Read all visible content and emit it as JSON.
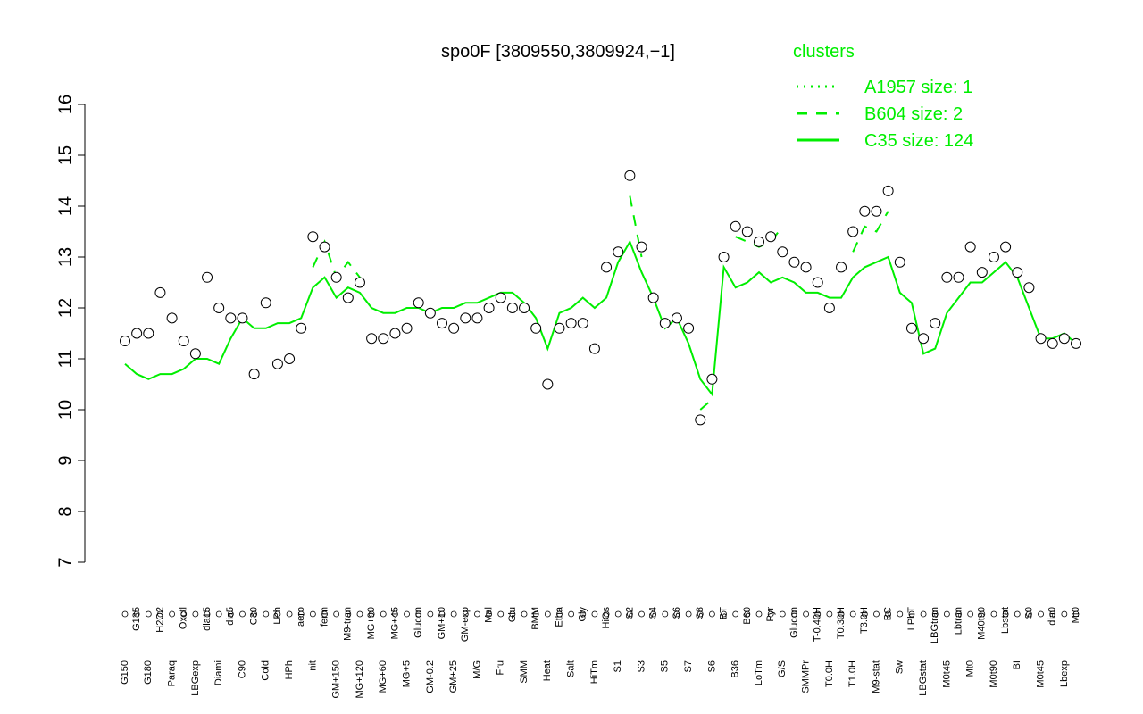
{
  "chart_data": {
    "type": "line",
    "title": "spo0F [3809550,3809924,−1]",
    "legend_title": "clusters",
    "legend_position": "top-right",
    "ylim": [
      7,
      16
    ],
    "yticks": [
      7,
      8,
      9,
      10,
      11,
      12,
      13,
      14,
      15,
      16
    ],
    "point_color": "#ffffff",
    "categories": [
      "G150",
      "G135",
      "G180",
      "H2O2",
      "Paraq",
      "Oxctl",
      "LBGexp",
      "dia15",
      "Diami",
      "dia5",
      "C90",
      "C30",
      "Cold",
      "LPh",
      "HPh",
      "aero",
      "nit",
      "ferm",
      "GM+150",
      "M9-tran",
      "MG+120",
      "MG+90",
      "MG+60",
      "MG+45",
      "MG+5",
      "Glucon",
      "GM-0.2",
      "GM+10",
      "GM+25",
      "GM-exp",
      "M/G",
      "Mal",
      "Fru",
      "Glu",
      "SMM",
      "BMM",
      "Heat",
      "Etha",
      "Salt",
      "Gly",
      "HiTm",
      "HiOs",
      "S1",
      "S2",
      "S3",
      "S4",
      "S5",
      "S6",
      "S7",
      "S8",
      "S6",
      "BT",
      "B36",
      "B60",
      "LoTm",
      "Pyr",
      "G/S",
      "Glucon",
      "SMMPr",
      "T-0.40H",
      "T0.0H",
      "T0.30H",
      "T1.0H",
      "T3.0H",
      "M9-stat",
      "BC",
      "Sw",
      "LPhT",
      "LBGstat",
      "LBGtran",
      "M0t45",
      "Lbtran",
      "Mt0",
      "M40t90",
      "M0t90",
      "Lbstat",
      "BI",
      "S0",
      "M0t45",
      "dia0",
      "Lbexp",
      "Mt0"
    ],
    "values": [
      11.35,
      11.5,
      11.5,
      12.3,
      11.8,
      11.35,
      11.1,
      12.6,
      12.0,
      11.8,
      11.8,
      10.7,
      12.1,
      10.9,
      11.0,
      11.6,
      13.4,
      13.2,
      12.6,
      12.2,
      12.5,
      11.4,
      11.4,
      11.5,
      11.6,
      12.1,
      11.9,
      11.7,
      11.6,
      11.8,
      11.8,
      12.0,
      12.2,
      12.0,
      12.0,
      11.6,
      10.5,
      11.6,
      11.7,
      11.7,
      11.2,
      12.8,
      13.1,
      14.6,
      13.2,
      12.2,
      11.7,
      11.8,
      11.6,
      9.8,
      10.6,
      13.0,
      13.6,
      13.5,
      13.3,
      13.4,
      13.1,
      12.9,
      12.8,
      12.5,
      12.0,
      12.8,
      13.5,
      13.9,
      13.9,
      14.3,
      12.9,
      11.6,
      11.4,
      11.7,
      12.6,
      12.6,
      13.2,
      12.7,
      13.0,
      13.2,
      12.7,
      12.4,
      11.4,
      11.3,
      11.4,
      11.3
    ],
    "series": [
      {
        "name": "A1957 size: 1",
        "color": "#00ee00",
        "dash": "dotted",
        "values": [
          null,
          null,
          null,
          null,
          null,
          null,
          null,
          null,
          null,
          null,
          null,
          null,
          null,
          null,
          null,
          null,
          null,
          null,
          null,
          null,
          null,
          null,
          null,
          null,
          null,
          null,
          null,
          null,
          null,
          null,
          null,
          null,
          null,
          null,
          null,
          null,
          null,
          null,
          null,
          null,
          null,
          null,
          null,
          null,
          null,
          null,
          null,
          null,
          null,
          null,
          null,
          null,
          null,
          null,
          null,
          null,
          null,
          null,
          null,
          null,
          null,
          null,
          null,
          null,
          null,
          null,
          null,
          null,
          null,
          null,
          null,
          null,
          null,
          null,
          null,
          null,
          null,
          null,
          null,
          null,
          null,
          null
        ]
      },
      {
        "name": "B604 size: 2",
        "color": "#00ee00",
        "dash": "dashed",
        "values": [
          null,
          null,
          null,
          null,
          null,
          null,
          null,
          null,
          null,
          null,
          null,
          null,
          null,
          null,
          null,
          null,
          12.8,
          13.3,
          12.6,
          12.9,
          12.6,
          null,
          null,
          null,
          null,
          null,
          null,
          null,
          null,
          null,
          null,
          null,
          null,
          null,
          null,
          null,
          null,
          null,
          null,
          null,
          null,
          null,
          null,
          14.2,
          13.0,
          null,
          null,
          null,
          null,
          10.0,
          10.2,
          null,
          13.4,
          13.3,
          13.2,
          13.3,
          13.6,
          null,
          null,
          null,
          null,
          null,
          13.1,
          13.6,
          13.5,
          13.9,
          null,
          null,
          null,
          null,
          null,
          null,
          null,
          null,
          null,
          null,
          null,
          null,
          null,
          null,
          null,
          null
        ]
      },
      {
        "name": "C35 size: 124",
        "color": "#00ee00",
        "dash": "solid",
        "values": [
          10.9,
          10.7,
          10.6,
          10.7,
          10.7,
          10.8,
          11.0,
          11.0,
          10.9,
          11.4,
          11.8,
          11.6,
          11.6,
          11.7,
          11.7,
          11.8,
          12.4,
          12.6,
          12.2,
          12.4,
          12.3,
          12.0,
          11.9,
          11.9,
          12.0,
          12.0,
          11.9,
          12.0,
          12.0,
          12.1,
          12.1,
          12.2,
          12.3,
          12.3,
          12.1,
          11.8,
          11.2,
          11.9,
          12.0,
          12.2,
          12.0,
          12.2,
          12.9,
          13.3,
          12.7,
          12.2,
          11.6,
          11.8,
          11.3,
          10.6,
          10.3,
          12.8,
          12.4,
          12.5,
          12.7,
          12.5,
          12.6,
          12.5,
          12.3,
          12.3,
          12.2,
          12.2,
          12.6,
          12.8,
          12.9,
          13.0,
          12.3,
          12.1,
          11.1,
          11.2,
          11.9,
          12.2,
          12.5,
          12.5,
          12.7,
          12.9,
          12.6,
          12.0,
          11.4,
          11.4,
          11.5,
          11.3
        ]
      }
    ]
  }
}
